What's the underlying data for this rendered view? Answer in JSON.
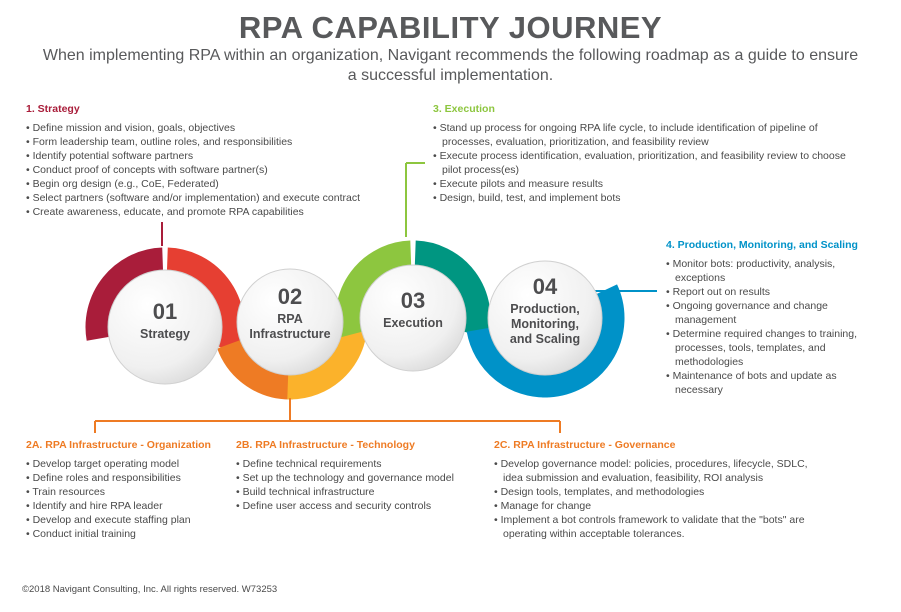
{
  "title": "RPA CAPABILITY JOURNEY",
  "subtitle": "When implementing RPA within an organization, Navigant recommends the following roadmap as a guide to ensure a successful implementation.",
  "colors": {
    "strategy": "#a91d3a",
    "strategy_light": "#e63f32",
    "infra": "#ee7b24",
    "infra_light": "#fbb22b",
    "execution": "#8dc63f",
    "execution_dark": "#009681",
    "production": "#0092c8",
    "text": "#4a4a4a"
  },
  "sections": {
    "strategy": {
      "heading": "1. Strategy",
      "items": [
        "Define mission and vision, goals, objectives",
        "Form leadership team, outline roles, and responsibilities",
        "Identify potential software partners",
        "Conduct proof of concepts with software partner(s)",
        "Begin org design (e.g., CoE, Federated)",
        "Select partners (software and/or implementation) and execute contract",
        "Create awareness, educate, and promote RPA capabilities"
      ]
    },
    "execution": {
      "heading": "3. Execution",
      "items": [
        "Stand up process for ongoing RPA life cycle, to include identification of pipeline of processes, evaluation, prioritization, and feasibility review",
        "Execute process identification, evaluation, prioritization, and feasibility review to choose pilot process(es)",
        "Execute pilots and measure results",
        "Design, build, test, and implement bots"
      ]
    },
    "production": {
      "heading": "4. Production, Monitoring, and Scaling",
      "items": [
        "Monitor bots: productivity, analysis, exceptions",
        "Report out on results",
        "Ongoing governance and change management",
        "Determine required changes to training, processes, tools, templates, and methodologies",
        "Maintenance of bots and update as necessary"
      ]
    },
    "org": {
      "heading": "2A. RPA Infrastructure - Organization",
      "items": [
        "Develop target operating model",
        "Define roles and responsibilities",
        "Train resources",
        "Identify and hire RPA leader",
        "Develop and execute staffing plan",
        "Conduct initial training"
      ]
    },
    "tech": {
      "heading": "2B. RPA Infrastructure - Technology",
      "items": [
        "Define technical requirements",
        "Set up the technology and governance model",
        "Build technical infrastructure",
        "Define user access and security controls"
      ]
    },
    "gov": {
      "heading": "2C. RPA Infrastructure - Governance",
      "items": [
        "Develop governance model: policies, procedures, lifecycle, SDLC, idea submission and evaluation, feasibility, ROI analysis",
        "Design tools, templates, and methodologies",
        "Manage for change",
        "Implement a bot controls framework to validate that the \"bots\" are operating within acceptable tolerances."
      ]
    }
  },
  "stages": [
    {
      "number": "01",
      "label": [
        "Strategy"
      ]
    },
    {
      "number": "02",
      "label": [
        "RPA",
        "Infrastructure"
      ]
    },
    {
      "number": "03",
      "label": [
        "Execution"
      ]
    },
    {
      "number": "04",
      "label": [
        "Production,",
        "Monitoring,",
        "and Scaling"
      ]
    }
  ],
  "footer": "©2018 Navigant Consulting, Inc. All rights reserved. W73253"
}
